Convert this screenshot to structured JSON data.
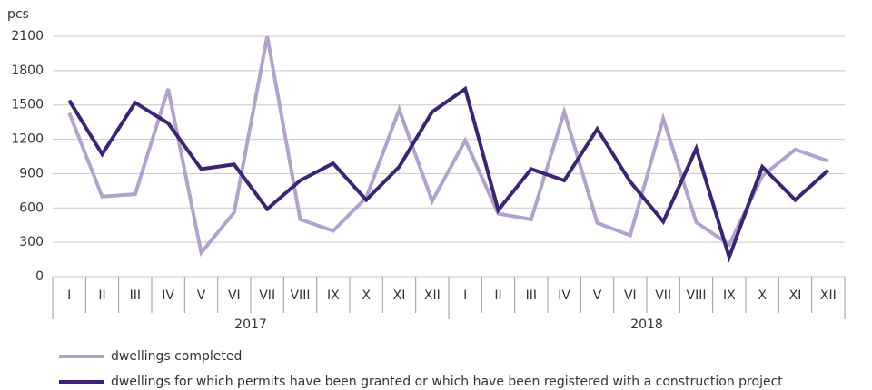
{
  "chart_data": {
    "type": "line",
    "y_axis_label": "pcs",
    "categories": [
      "I",
      "II",
      "III",
      "IV",
      "V",
      "VI",
      "VII",
      "VIII",
      "IX",
      "X",
      "XI",
      "XII",
      "I",
      "II",
      "III",
      "IV",
      "V",
      "VI",
      "VII",
      "VIII",
      "IX",
      "X",
      "XI",
      "XII"
    ],
    "category_groups": [
      "2017",
      "2018"
    ],
    "ylim": [
      0,
      2100
    ],
    "yticks": [
      0,
      300,
      600,
      900,
      1200,
      1500,
      1800,
      2100
    ],
    "grid": true,
    "legend_position": "bottom-left",
    "series": [
      {
        "name": "dwellings completed",
        "color": "#b3a3cc",
        "values": [
          1430,
          700,
          720,
          1640,
          210,
          560,
          2100,
          500,
          400,
          690,
          1460,
          660,
          1190,
          550,
          500,
          1440,
          470,
          360,
          1380,
          475,
          280,
          880,
          1110,
          1010
        ]
      },
      {
        "name": "dwellings for which permits have been granted or which have been registered with a construction project",
        "color": "#3d2373",
        "values": [
          1540,
          1070,
          1520,
          1340,
          940,
          980,
          590,
          840,
          990,
          670,
          960,
          1440,
          1640,
          580,
          940,
          840,
          1290,
          830,
          480,
          1120,
          170,
          960,
          670,
          930
        ]
      }
    ]
  }
}
